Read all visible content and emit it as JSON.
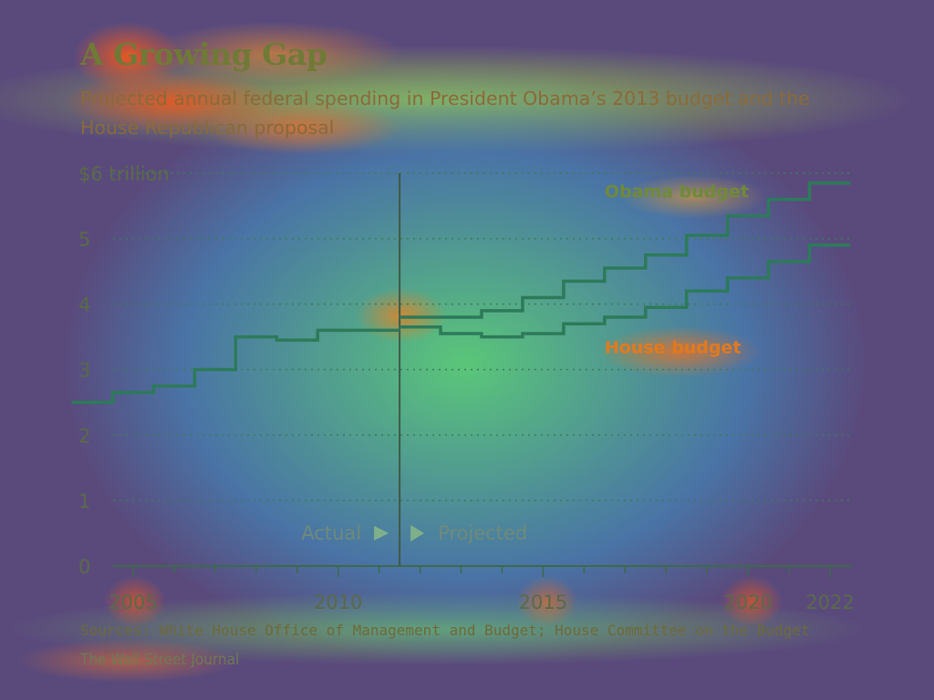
{
  "chart_data": {
    "type": "line",
    "title": "A Growing Gap",
    "subtitle": "Projected annual federal spending in President Obama’s 2013 budget and the House Republican proposal",
    "ylabel": "",
    "xlabel": "",
    "ylim": [
      0,
      6
    ],
    "xlim": [
      2004.5,
      2022.5
    ],
    "y_ticks": [
      {
        "value": 0,
        "label": "0"
      },
      {
        "value": 1,
        "label": "1"
      },
      {
        "value": 2,
        "label": "2"
      },
      {
        "value": 3,
        "label": "3"
      },
      {
        "value": 4,
        "label": "4"
      },
      {
        "value": 5,
        "label": "5"
      },
      {
        "value": 6,
        "label": "$6 trillion"
      }
    ],
    "x_ticks": [
      {
        "value": 2005,
        "label": "2005"
      },
      {
        "value": 2010,
        "label": "2010"
      },
      {
        "value": 2015,
        "label": "2015"
      },
      {
        "value": 2020,
        "label": "2020"
      },
      {
        "value": 2022,
        "label": "2022"
      }
    ],
    "grid": true,
    "step_style": true,
    "divider_year": 2011.5,
    "phase_labels": {
      "actual": "Actual",
      "projected": "Projected"
    },
    "x": [
      2004,
      2005,
      2006,
      2007,
      2008,
      2009,
      2010,
      2011,
      2012,
      2013,
      2014,
      2015,
      2016,
      2017,
      2018,
      2019,
      2020,
      2021,
      2022
    ],
    "series": [
      {
        "name": "Obama budget",
        "label_year": 2016.5,
        "label_value": 5.63,
        "x": [
          2012,
          2013,
          2014,
          2015,
          2016,
          2017,
          2018,
          2019,
          2020,
          2021,
          2022
        ],
        "values": [
          3.8,
          3.8,
          3.9,
          4.1,
          4.35,
          4.55,
          4.75,
          5.05,
          5.35,
          5.6,
          5.85
        ]
      },
      {
        "name": "House budget",
        "label_year": 2016.5,
        "label_value": 3.25,
        "x": [
          2012,
          2013,
          2014,
          2015,
          2016,
          2017,
          2018,
          2019,
          2020,
          2021,
          2022
        ],
        "values": [
          3.65,
          3.55,
          3.5,
          3.55,
          3.7,
          3.8,
          3.95,
          4.2,
          4.4,
          4.65,
          4.9
        ]
      },
      {
        "name": "",
        "x": [
          2004,
          2005,
          2006,
          2007,
          2008,
          2009,
          2010,
          2011
        ],
        "values": [
          2.5,
          2.65,
          2.75,
          3.0,
          3.5,
          3.45,
          3.6,
          3.6
        ]
      }
    ],
    "colors": {
      "line": "#2d7a5a",
      "grid": "#3f7a5c",
      "divider": "#3e5a48",
      "obama_label": "#6f8a3a",
      "house_label": "#e07a20",
      "axis": "#3d6a4a"
    }
  },
  "source_text": "Sources: White House Office of Management and Budget; House Committee on the Budget",
  "credit_text": "The Wall Street Journal"
}
